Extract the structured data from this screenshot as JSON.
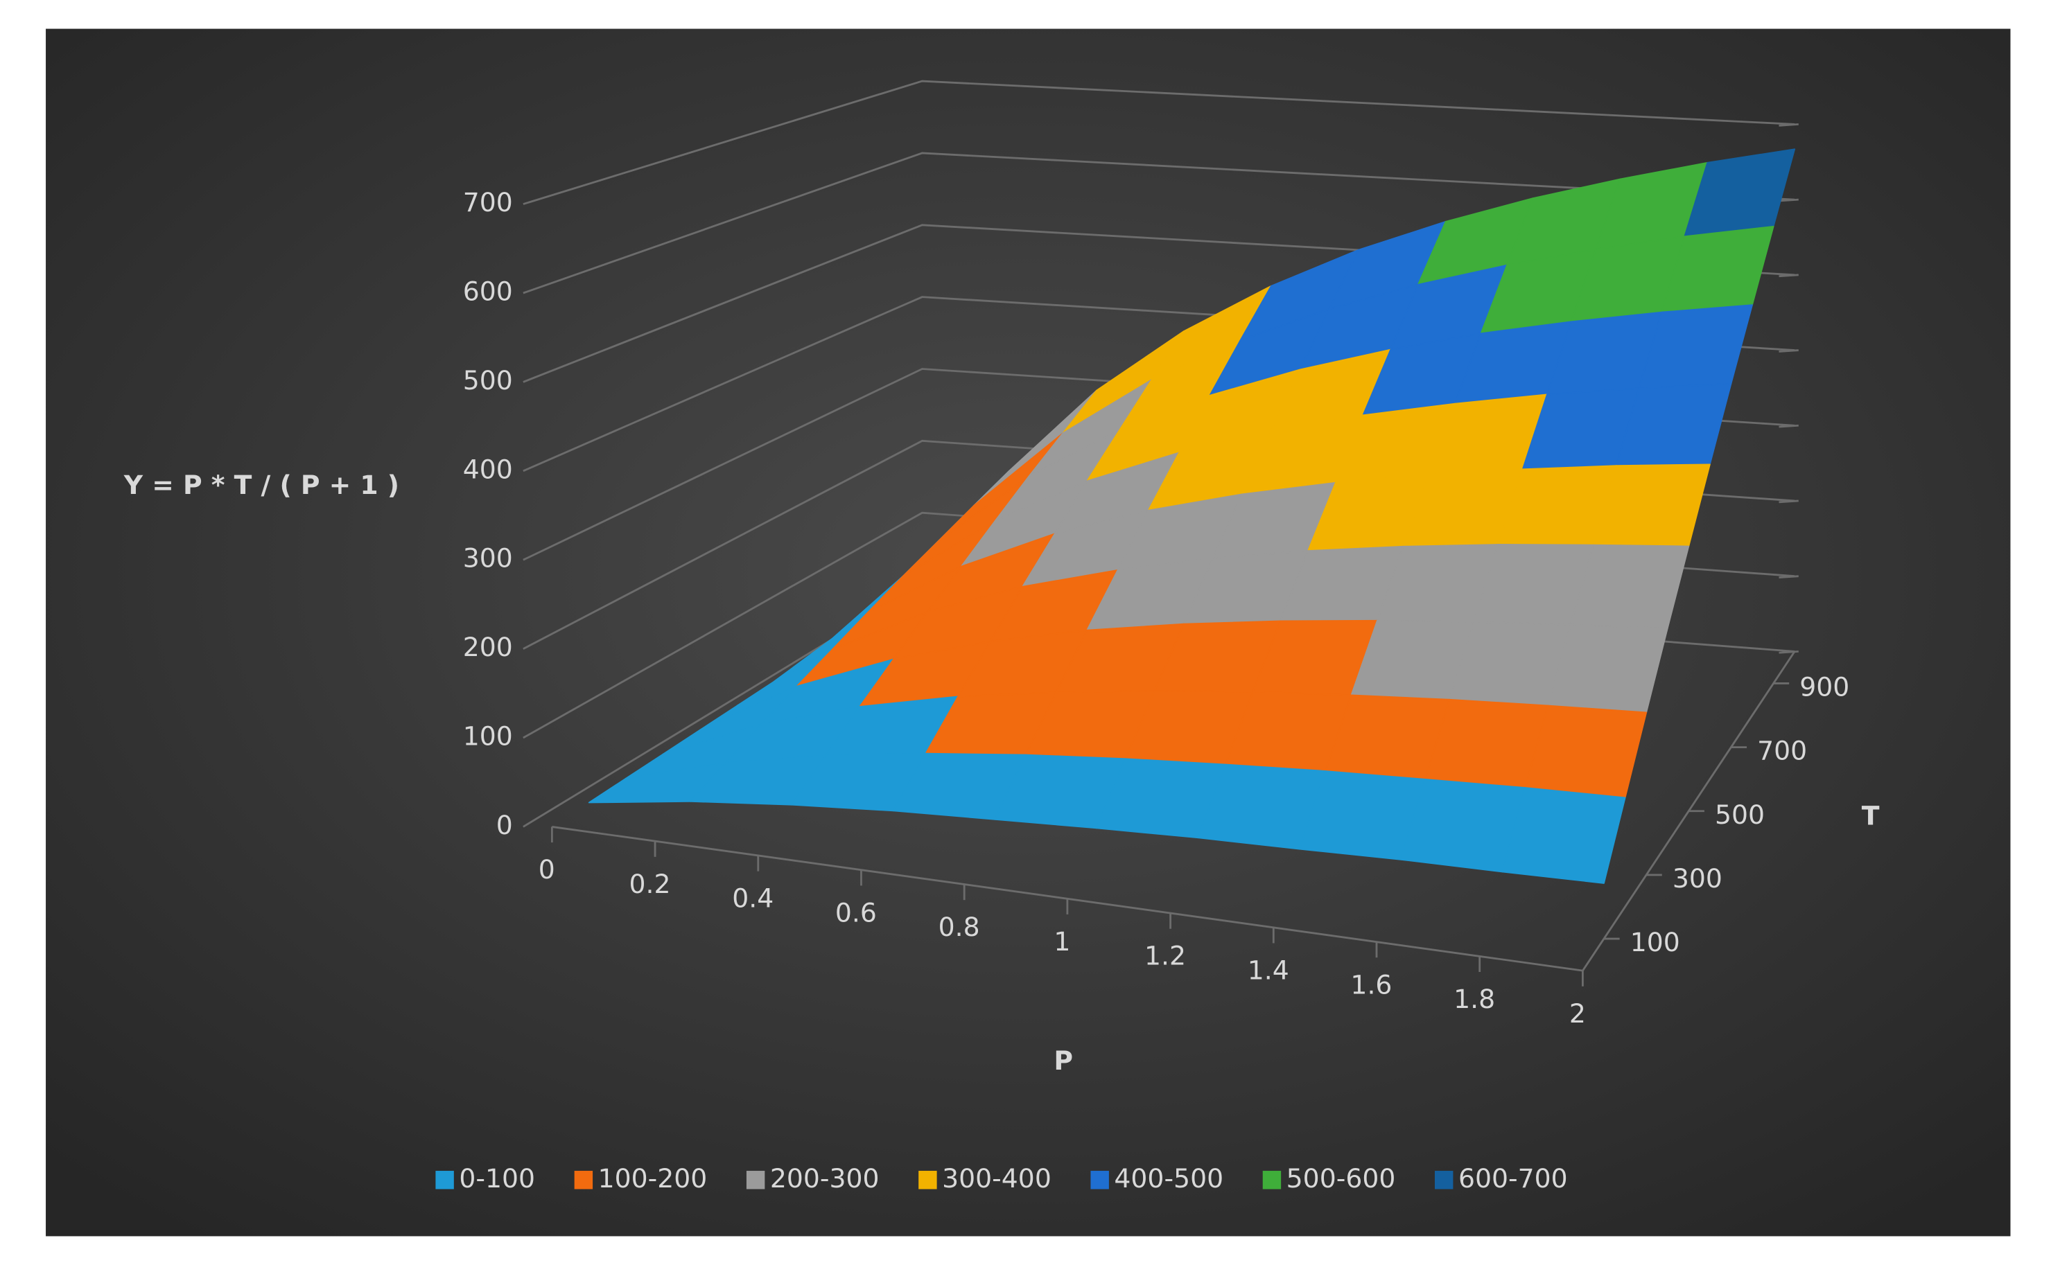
{
  "chart_data": {
    "type": "surface",
    "x_label": "P",
    "y_label": "Y = P * T / ( P + 1 )",
    "depth_label": "T",
    "x": [
      0,
      0.2,
      0.4,
      0.6,
      0.8,
      1,
      1.2,
      1.4,
      1.6,
      1.8,
      2
    ],
    "depth": [
      100,
      200,
      300,
      400,
      500,
      600,
      700,
      800,
      900,
      1000
    ],
    "values": [
      [
        0,
        17,
        29,
        38,
        44,
        50,
        55,
        58,
        62,
        64,
        67
      ],
      [
        0,
        33,
        57,
        75,
        89,
        100,
        109,
        117,
        123,
        129,
        133
      ],
      [
        0,
        50,
        86,
        113,
        133,
        150,
        164,
        175,
        185,
        193,
        200
      ],
      [
        0,
        67,
        114,
        150,
        178,
        200,
        218,
        233,
        246,
        257,
        267
      ],
      [
        0,
        83,
        143,
        188,
        222,
        250,
        273,
        292,
        308,
        321,
        333
      ],
      [
        0,
        100,
        171,
        225,
        267,
        300,
        327,
        350,
        369,
        386,
        400
      ],
      [
        0,
        117,
        200,
        263,
        311,
        350,
        382,
        408,
        431,
        450,
        467
      ],
      [
        0,
        133,
        229,
        300,
        356,
        400,
        436,
        467,
        492,
        514,
        533
      ],
      [
        0,
        150,
        257,
        338,
        400,
        450,
        491,
        525,
        554,
        579,
        600
      ],
      [
        0,
        167,
        286,
        375,
        444,
        500,
        545,
        583,
        615,
        643,
        667
      ]
    ],
    "xlim": [
      0,
      2
    ],
    "xticks": [
      0,
      0.2,
      0.4,
      0.6,
      0.8,
      1,
      1.2,
      1.4,
      1.6,
      1.8,
      2
    ],
    "depthlim": [
      0,
      1000
    ],
    "depthticks": [
      100,
      300,
      500,
      700,
      900
    ],
    "ylim": [
      0,
      700
    ],
    "yticks": [
      0,
      100,
      200,
      300,
      400,
      500,
      600,
      700
    ],
    "grid": true,
    "legend_position": "bottom",
    "bands": [
      {
        "name": "0-100",
        "color": "#1e9ad6"
      },
      {
        "name": "100-200",
        "color": "#f26b0f"
      },
      {
        "name": "200-300",
        "color": "#9b9b9b"
      },
      {
        "name": "300-400",
        "color": "#f2b200"
      },
      {
        "name": "400-500",
        "color": "#1f6fd1"
      },
      {
        "name": "500-600",
        "color": "#3fae3a"
      },
      {
        "name": "600-700",
        "color": "#14609f"
      }
    ]
  }
}
